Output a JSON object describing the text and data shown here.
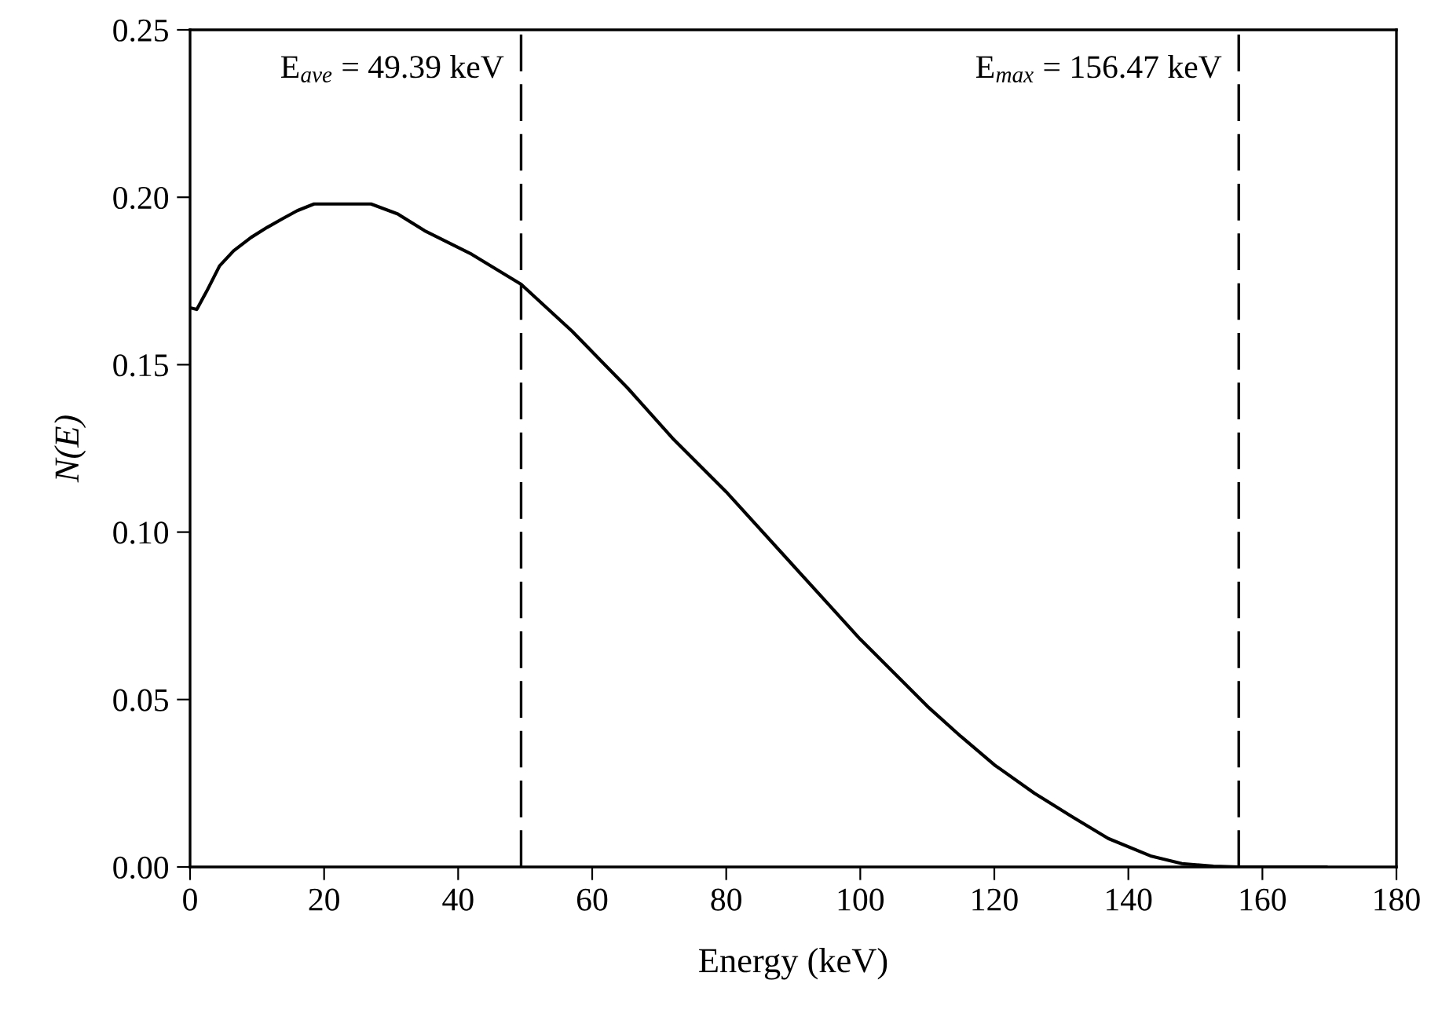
{
  "chart_data": {
    "type": "line",
    "xlabel": "Energy (keV)",
    "ylabel": "N(E)",
    "series": [
      {
        "color": "#000000",
        "x": [
          0,
          1,
          2.5,
          4.4,
          6.5,
          9.1,
          11.5,
          13.8,
          16,
          18.5,
          22,
          27,
          31,
          35,
          42,
          49.39,
          57,
          65.3,
          72,
          80,
          90,
          100,
          110,
          115,
          120,
          126,
          131.6,
          137,
          143.3,
          148,
          152.7,
          156.47,
          160,
          165,
          169.5
        ],
        "values": [
          0.167,
          0.1665,
          0.172,
          0.1795,
          0.184,
          0.188,
          0.191,
          0.1936,
          0.196,
          0.198,
          0.198,
          0.198,
          0.195,
          0.19,
          0.183,
          0.174,
          0.16,
          0.143,
          0.128,
          0.112,
          0.09,
          0.068,
          0.048,
          0.039,
          0.0305,
          0.022,
          0.015,
          0.0085,
          0.0033,
          0.001,
          0.0002,
          0,
          0,
          0,
          0
        ]
      }
    ],
    "line_style": "solid",
    "marker": "none",
    "grid": false,
    "xlim": [
      0,
      180
    ],
    "xticks": [
      0,
      20,
      40,
      60,
      80,
      100,
      120,
      140,
      160,
      180
    ],
    "ylim": [
      0,
      0.25
    ],
    "yticks": [
      {
        "value": 0,
        "label": "0.00"
      },
      {
        "value": 0.05,
        "label": "0.05"
      },
      {
        "value": 0.1,
        "label": "0.10"
      },
      {
        "value": 0.15,
        "label": "0.15"
      },
      {
        "value": 0.2,
        "label": "0.20"
      },
      {
        "value": 0.25,
        "label": "0.25"
      }
    ],
    "ref_lines": [
      {
        "axis": "x",
        "value": 49.39,
        "label": "E$_{ave}$ = 49.39 keV",
        "line_style": "dashed",
        "color": "#000000"
      },
      {
        "axis": "x",
        "value": 156.47,
        "label": "E$_{max}$ = 156.47 keV",
        "line_style": "dashed",
        "color": "#000000"
      }
    ]
  }
}
